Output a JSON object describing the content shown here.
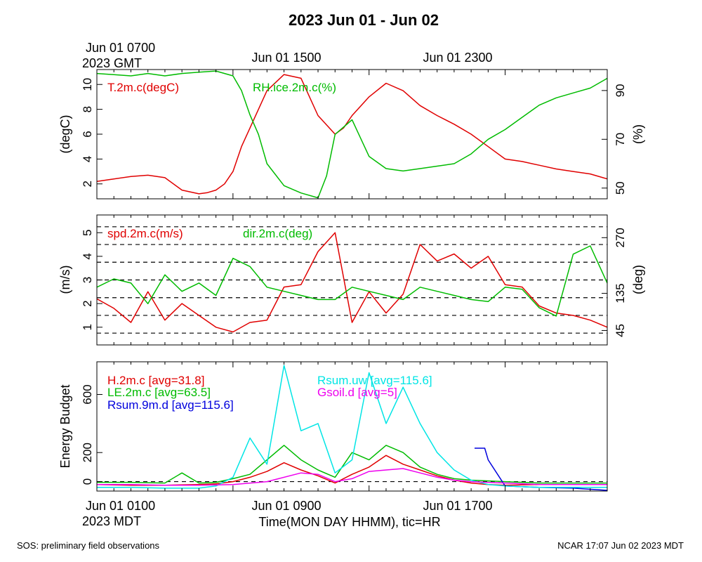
{
  "title": "2023 Jun 01 - Jun 02",
  "top_time_labels": {
    "first_line1": "Jun 01 0700",
    "first_line2": "2023 GMT",
    "second": "Jun 01 1500",
    "third": "Jun 01 2300"
  },
  "bottom_time_labels": {
    "first_line1": "Jun 01 0100",
    "first_line2": "2023 MDT",
    "second": "Jun 01 0900",
    "third": "Jun 01 1700"
  },
  "xlabel": "Time(MON DAY HHMM), tic=HR",
  "footer_left": "SOS: preliminary field observations",
  "footer_right": "NCAR 17:07 Jun 02 2023 MDT",
  "colors": {
    "red": "#e00000",
    "green": "#00bb00",
    "blue": "#0000dd",
    "cyan": "#00e5e5",
    "magenta": "#ee00ee"
  },
  "chart_data": [
    {
      "type": "line",
      "x_hours_mdt": [
        0,
        30
      ],
      "ylabel": "(degC)",
      "ylabel_right": "(%)",
      "ylim": [
        0.8,
        11.2
      ],
      "ylim_right": [
        45.6,
        98.6
      ],
      "yticks": [
        2,
        4,
        6,
        8,
        10
      ],
      "yticks_right": [
        50,
        70,
        90
      ],
      "series": [
        {
          "name": "T.2m.c(degC)",
          "color": "#e00000",
          "axis": "left",
          "x": [
            0,
            1,
            2,
            3,
            4,
            5,
            6,
            6.5,
            7,
            7.5,
            8,
            8.5,
            9,
            9.5,
            10,
            11,
            12,
            12.5,
            13,
            14,
            14.5,
            15,
            16,
            17,
            18,
            19,
            20,
            21,
            22,
            23,
            24,
            25,
            26,
            27,
            28,
            29,
            30
          ],
          "values": [
            2.2,
            2.4,
            2.6,
            2.7,
            2.5,
            1.5,
            1.2,
            1.3,
            1.5,
            2.0,
            3.0,
            5.0,
            6.5,
            8.0,
            9.5,
            10.8,
            10.5,
            9.0,
            7.5,
            6.0,
            6.5,
            7.5,
            9.0,
            10.1,
            9.5,
            8.3,
            7.5,
            6.8,
            6.0,
            5.0,
            4.0,
            3.8,
            3.5,
            3.2,
            3.0,
            2.8,
            2.4
          ]
        },
        {
          "name": "RH.ice.2m.c(%)",
          "color": "#00bb00",
          "axis": "right",
          "x": [
            0,
            1,
            2,
            3,
            4,
            5,
            6,
            7,
            8,
            8.5,
            9,
            9.5,
            10,
            11,
            12,
            13,
            13.5,
            14,
            15,
            16,
            17,
            18,
            19,
            20,
            21,
            22,
            23,
            24,
            25,
            26,
            27,
            28,
            29,
            30
          ],
          "values": [
            97,
            96.5,
            96,
            97,
            96,
            97,
            97.5,
            98,
            96,
            90,
            80,
            72,
            60,
            51,
            48,
            46,
            55,
            72,
            78,
            63,
            58,
            57,
            58,
            59,
            60,
            64,
            70,
            74,
            79,
            84,
            87,
            89,
            91,
            95
          ]
        }
      ]
    },
    {
      "type": "line",
      "x_hours_mdt": [
        0,
        30
      ],
      "ylabel": "(m/s)",
      "ylabel_right": "(deg)",
      "ylim": [
        0.25,
        5.75
      ],
      "ylim_right": [
        10,
        325
      ],
      "yticks": [
        1,
        2,
        3,
        4,
        5
      ],
      "yticks_right": [
        45,
        135,
        270
      ],
      "dashed_levels": [
        0.75,
        1.5,
        2.25,
        3.0,
        3.75,
        4.5,
        5.25
      ],
      "series": [
        {
          "name": "spd.2m.c(m/s)",
          "color": "#e00000",
          "axis": "left",
          "x": [
            0,
            1,
            2,
            3,
            4,
            5,
            6,
            7,
            8,
            9,
            10,
            11,
            12,
            13,
            14,
            15,
            16,
            17,
            18,
            19,
            20,
            21,
            22,
            23,
            24,
            25,
            26,
            27,
            28,
            29,
            30
          ],
          "values": [
            2.2,
            1.8,
            1.2,
            2.5,
            1.3,
            2.0,
            1.5,
            1.0,
            0.8,
            1.2,
            1.3,
            2.7,
            2.8,
            4.2,
            5.0,
            1.2,
            2.5,
            1.6,
            2.4,
            4.5,
            3.8,
            4.1,
            3.5,
            4.0,
            2.8,
            2.7,
            1.9,
            1.6,
            1.5,
            1.3,
            1.0
          ]
        },
        {
          "name": "dir.2m.c(deg)",
          "color": "#00bb00",
          "axis": "right",
          "x": [
            0,
            1,
            2,
            3,
            4,
            5,
            6,
            7,
            8,
            9,
            10,
            11,
            12,
            13,
            14,
            15,
            16,
            17,
            18,
            19,
            20,
            21,
            22,
            23,
            24,
            25,
            26,
            27,
            28,
            29,
            30
          ],
          "values": [
            150,
            170,
            160,
            110,
            180,
            140,
            160,
            130,
            220,
            200,
            150,
            140,
            130,
            120,
            120,
            150,
            140,
            130,
            120,
            150,
            140,
            130,
            120,
            115,
            150,
            145,
            100,
            80,
            230,
            250,
            160
          ]
        }
      ]
    },
    {
      "type": "line",
      "x_hours_mdt": [
        0,
        30
      ],
      "ylabel": "Energy Budget",
      "ylim": [
        -65,
        825
      ],
      "yticks": [
        0,
        200,
        600
      ],
      "dashed_levels": [
        0
      ],
      "series": [
        {
          "name": "H.2m.c [avg=31.8]",
          "color": "#e00000",
          "x": [
            0,
            2,
            4,
            6,
            7,
            8,
            9,
            10,
            11,
            12,
            13,
            14,
            15,
            16,
            17,
            18,
            19,
            20,
            21,
            22,
            23,
            24,
            26,
            28,
            30
          ],
          "values": [
            -20,
            -25,
            -25,
            -20,
            -15,
            0,
            30,
            70,
            130,
            80,
            40,
            -10,
            50,
            100,
            180,
            120,
            80,
            40,
            10,
            -10,
            -20,
            -25,
            -20,
            -20,
            -20
          ]
        },
        {
          "name": "LE.2m.c [avg=63.5]",
          "color": "#00bb00",
          "x": [
            0,
            2,
            4,
            5,
            6,
            7,
            8,
            9,
            10,
            11,
            12,
            13,
            14,
            15,
            16,
            17,
            18,
            19,
            20,
            21,
            22,
            24,
            26,
            28,
            30
          ],
          "values": [
            -5,
            -5,
            -10,
            60,
            -10,
            -5,
            20,
            50,
            150,
            250,
            150,
            80,
            30,
            200,
            150,
            250,
            200,
            100,
            50,
            20,
            10,
            0,
            -10,
            -10,
            -10
          ]
        },
        {
          "name": "Rsum.9m.d [avg=115.6]",
          "color": "#0000dd",
          "x": [
            22.2,
            22.8,
            23,
            24,
            26,
            28,
            30
          ],
          "values": [
            230,
            230,
            150,
            -30,
            -40,
            -45,
            -60
          ]
        },
        {
          "name": "Rsum.uw [avg=115.6]",
          "color": "#00e5e5",
          "x": [
            0,
            2,
            4,
            6,
            7,
            8,
            9,
            10,
            11,
            12,
            13,
            14,
            15,
            16,
            17,
            18,
            19,
            20,
            21,
            22,
            23,
            24,
            26,
            28,
            30
          ],
          "values": [
            -40,
            -40,
            -45,
            -45,
            -30,
            30,
            300,
            120,
            800,
            350,
            400,
            60,
            150,
            750,
            400,
            650,
            400,
            200,
            80,
            10,
            -20,
            -30,
            -40,
            -40,
            -40
          ]
        },
        {
          "name": "Gsoil.d [avg=5]",
          "color": "#ee00ee",
          "x": [
            0,
            2,
            4,
            6,
            8,
            10,
            12,
            13,
            14,
            15,
            16,
            17,
            18,
            19,
            20,
            21,
            22,
            24,
            26,
            28,
            30
          ],
          "values": [
            -20,
            -20,
            -25,
            -25,
            -20,
            0,
            60,
            50,
            0,
            20,
            70,
            80,
            90,
            60,
            30,
            10,
            0,
            -10,
            -20,
            -20,
            -20
          ]
        }
      ]
    }
  ]
}
